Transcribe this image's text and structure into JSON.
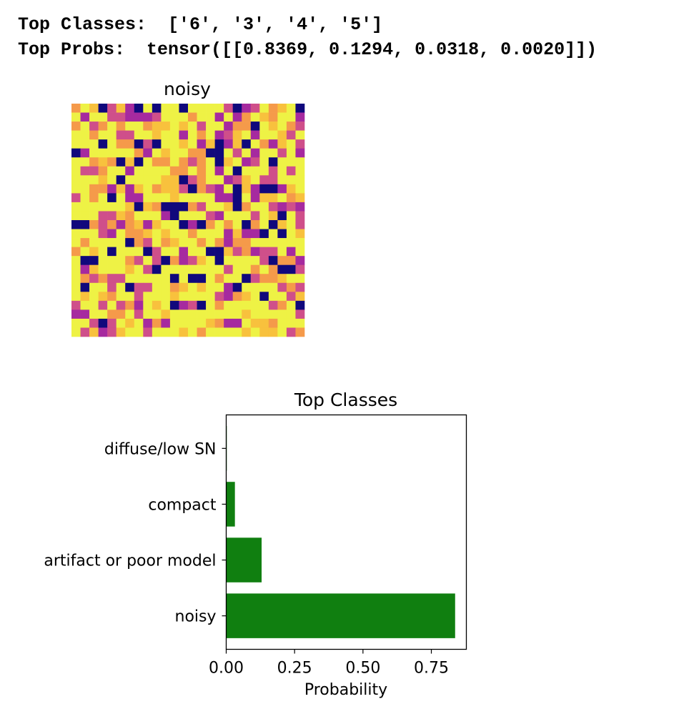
{
  "console": {
    "line1": "Top Classes:  ['6', '3', '4', '5']",
    "line2": "Top Probs:  tensor([[0.8369, 0.1294, 0.0318, 0.0020]])"
  },
  "image_panel": {
    "title": "noisy",
    "colormap": "plasma",
    "grid_size": 26
  },
  "chart_data": {
    "type": "bar",
    "orientation": "horizontal",
    "title": "Top Classes",
    "xlabel": "Probability",
    "ylabel": "",
    "categories": [
      "noisy",
      "artifact or poor model",
      "compact",
      "diffuse/low SN"
    ],
    "values": [
      0.8369,
      0.1294,
      0.0318,
      0.002
    ],
    "xlim": [
      0,
      0.878
    ],
    "xticks": [
      "0.00",
      "0.25",
      "0.50",
      "0.75"
    ],
    "bar_color": "#107f10",
    "grid": false
  }
}
